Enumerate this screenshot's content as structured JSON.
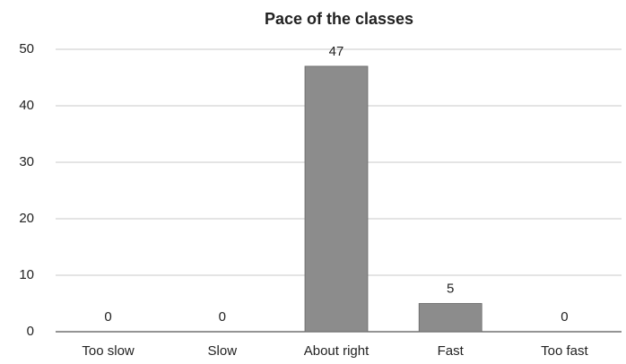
{
  "chart_data": {
    "type": "bar",
    "title": "Pace of the classes",
    "categories": [
      "Too slow",
      "Slow",
      "About right",
      "Fast",
      "Too fast"
    ],
    "values": [
      0,
      0,
      47,
      5,
      0
    ],
    "color": "#8c8c8c",
    "ylim": [
      0,
      50
    ],
    "yticks": [
      0,
      10,
      20,
      30,
      40,
      50
    ],
    "grid": true
  }
}
